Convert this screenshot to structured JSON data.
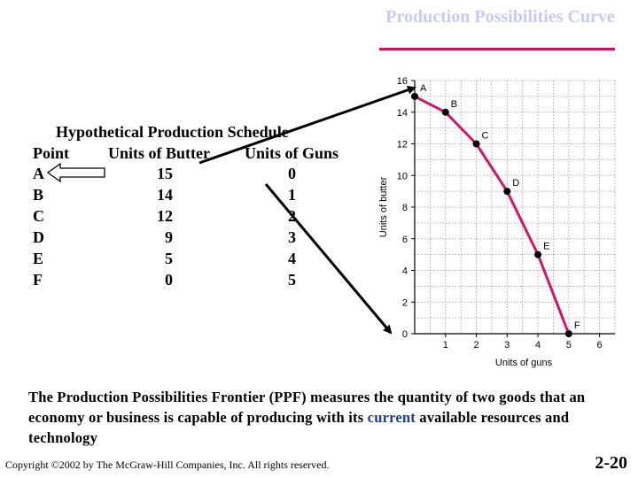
{
  "slide": {
    "title": "Production Possibilities Curve",
    "schedule_title": "Hypothetical Production Schedule",
    "columns": [
      "Point",
      "Units of Butter",
      "Units of Guns"
    ],
    "rows": [
      {
        "point": "A",
        "butter": "15",
        "guns": "0"
      },
      {
        "point": "B",
        "butter": "14",
        "guns": "1"
      },
      {
        "point": "C",
        "butter": "12",
        "guns": "2"
      },
      {
        "point": "D",
        "butter": "9",
        "guns": "3"
      },
      {
        "point": "E",
        "butter": "5",
        "guns": "4"
      },
      {
        "point": "F",
        "butter": "0",
        "guns": "5"
      }
    ],
    "description_pre": "The Production Possibilities Frontier (PPF)  measures the quantity of two goods that an economy or business is capable of producing with its ",
    "description_highlight": "current",
    "description_post": " available resources and technology",
    "copyright": "Copyright ©2002 by The McGraw-Hill Companies, Inc.  All rights reserved.",
    "page_number": "2-20"
  },
  "chart_data": {
    "type": "line",
    "xlabel": "Units of guns",
    "ylabel": "Units of butter",
    "xlim": [
      0,
      6.5
    ],
    "ylim": [
      0,
      16
    ],
    "x_ticks": [
      1,
      2,
      3,
      4,
      5,
      6
    ],
    "y_ticks": [
      0,
      2,
      4,
      6,
      8,
      10,
      12,
      14,
      16
    ],
    "grid": true,
    "points": [
      {
        "label": "A",
        "x": 0,
        "y": 15
      },
      {
        "label": "B",
        "x": 1,
        "y": 14
      },
      {
        "label": "C",
        "x": 2,
        "y": 12
      },
      {
        "label": "D",
        "x": 3,
        "y": 9
      },
      {
        "label": "E",
        "x": 4,
        "y": 5
      },
      {
        "label": "F",
        "x": 5,
        "y": 0
      }
    ],
    "colors": {
      "curve": "#d4146a",
      "points": "#000000",
      "grid": "#9a9a9a"
    }
  }
}
